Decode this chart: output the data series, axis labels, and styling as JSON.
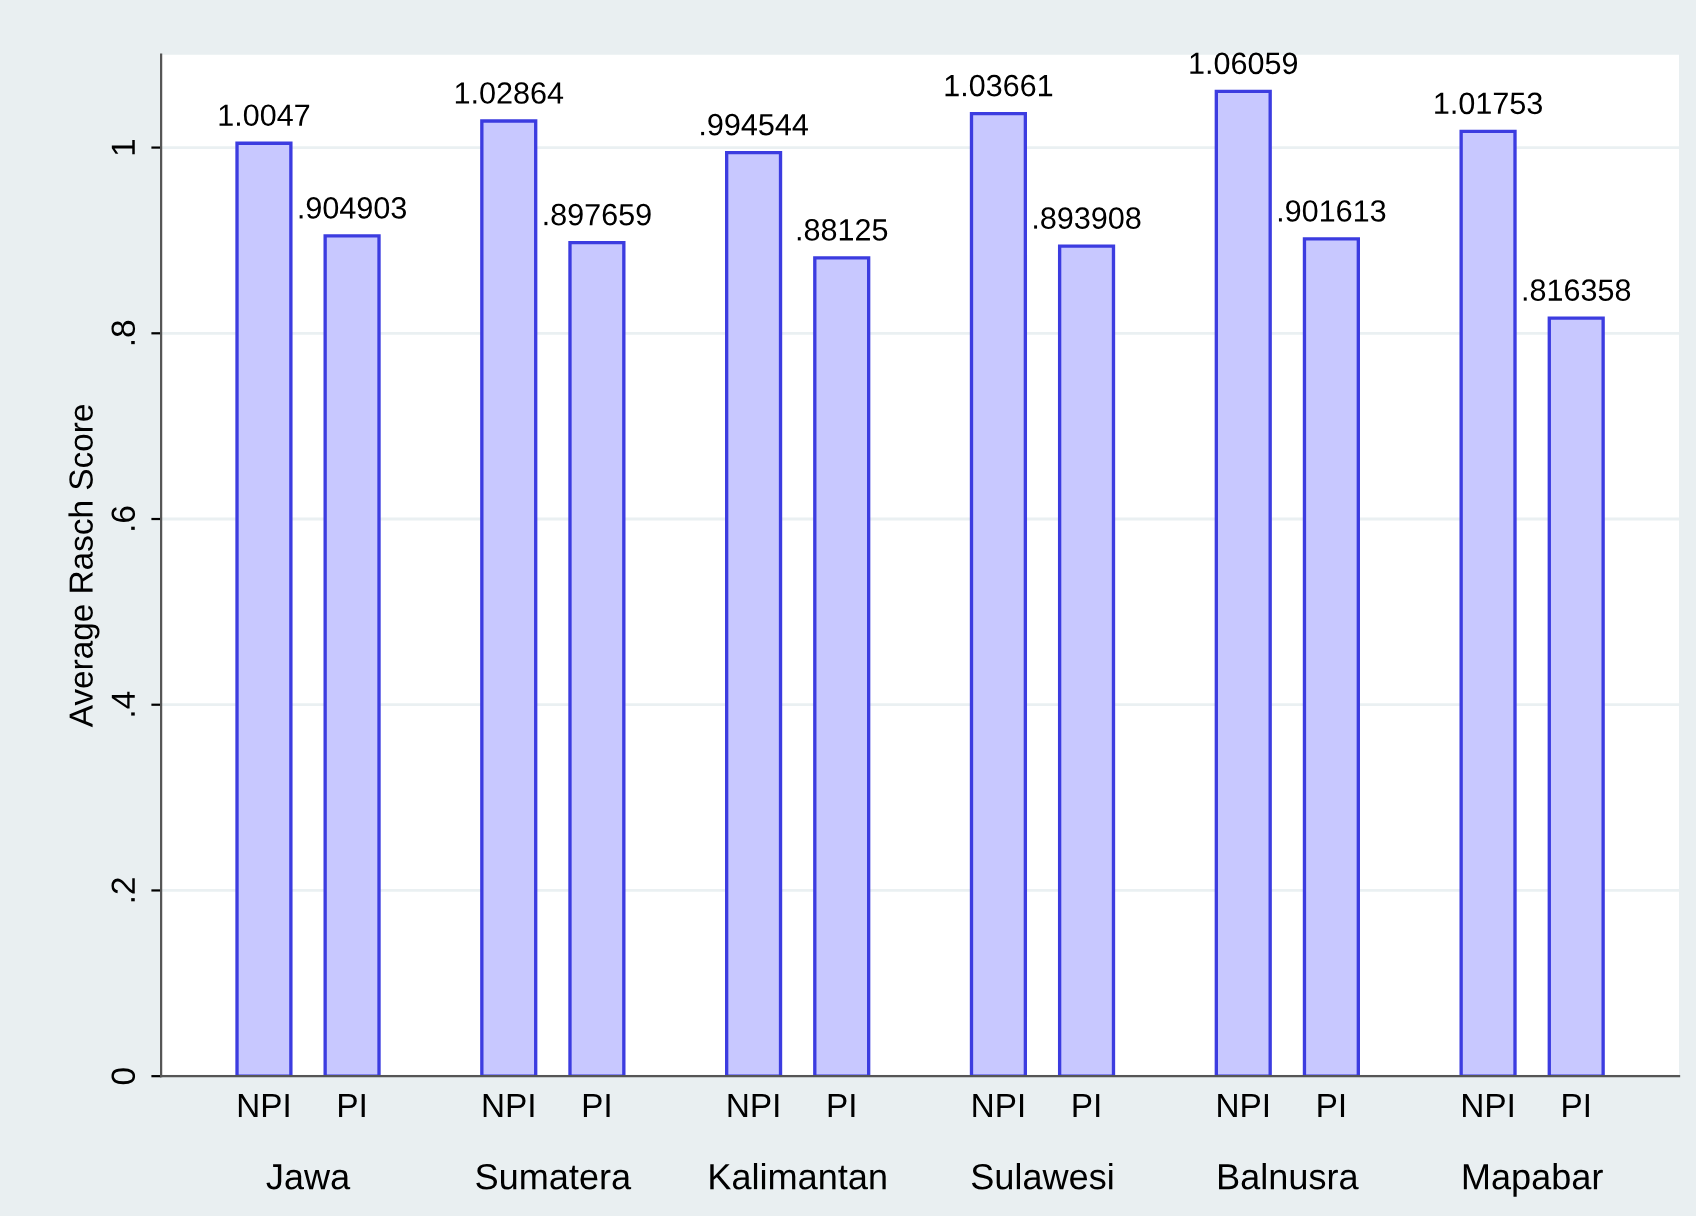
{
  "chart_data": {
    "type": "bar",
    "ylabel": "Average Rasch Score",
    "categories": [
      "Jawa",
      "Sumatera",
      "Kalimantan",
      "Sulawesi",
      "Balnusra",
      "Mapabar"
    ],
    "series": [
      {
        "name": "NPI",
        "color": "#c8c8ff",
        "values": [
          1.0047,
          1.02864,
          0.994544,
          1.03661,
          1.06059,
          1.01753
        ],
        "value_labels": [
          "1.0047",
          "1.02864",
          ".994544",
          "1.03661",
          "1.06059",
          "1.01753"
        ]
      },
      {
        "name": "PI",
        "color": "#c8c8ff",
        "values": [
          0.904903,
          0.897659,
          0.88125,
          0.893908,
          0.901613,
          0.816358
        ],
        "value_labels": [
          ".904903",
          ".897659",
          ".88125",
          ".893908",
          ".901613",
          ".816358"
        ]
      }
    ],
    "ylim": [
      0,
      1.1
    ],
    "yticks": [
      0,
      {
        "value": 0.2,
        "label": ".2"
      },
      {
        "value": 0.4,
        "label": ".4"
      },
      {
        "value": 0.6,
        "label": ".6"
      },
      {
        "value": 0.8,
        "label": ".8"
      },
      1
    ],
    "grid": "y",
    "legend": false
  }
}
